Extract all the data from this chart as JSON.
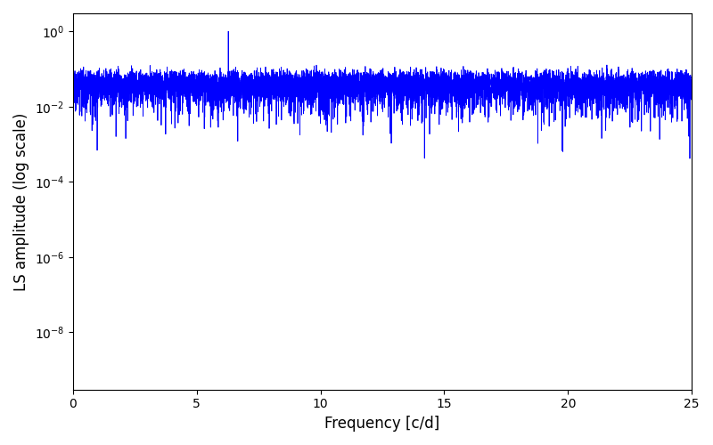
{
  "xlabel": "Frequency [c/d]",
  "ylabel": "LS amplitude (log scale)",
  "line_color": "#0000ff",
  "line_width": 0.6,
  "xlim": [
    0,
    25
  ],
  "yscale": "log",
  "figsize": [
    8.0,
    5.0
  ],
  "dpi": 100,
  "freq_min": 0.0,
  "freq_max": 25.0,
  "n_points": 8000,
  "seed": 123,
  "yticks": [
    1e-08,
    1e-06,
    0.0001,
    0.01,
    1.0
  ],
  "ylim": [
    3e-10,
    3.0
  ]
}
